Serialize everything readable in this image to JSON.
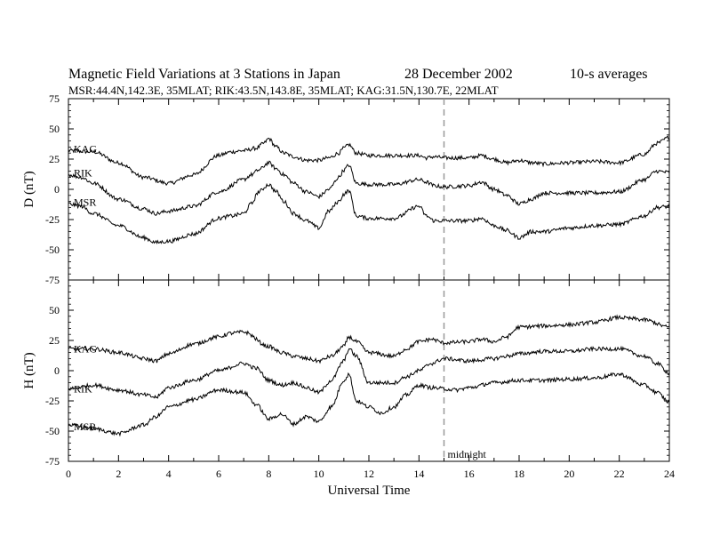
{
  "header": {
    "title": "Magnetic Field Variations at 3 Stations in Japan",
    "date": "28 December 2002",
    "averaging": "10-s averages",
    "stations_line": "MSR:44.4N,142.3E, 35MLAT;  RIK:43.5N,143.8E, 35MLAT;  KAG:31.5N,130.7E, 22MLAT"
  },
  "chart_data": [
    {
      "type": "line",
      "panel": "D",
      "ylabel": "D (nT)",
      "xlabel": "",
      "xlim": [
        0,
        24
      ],
      "ylim": [
        -75,
        75
      ],
      "yticks": [
        75,
        50,
        25,
        0,
        -25,
        -50,
        -75
      ],
      "xticks": [],
      "series": [
        {
          "name": "KAG",
          "x": [
            0,
            1,
            2,
            3,
            4,
            5,
            6,
            6.5,
            7,
            7.5,
            7.8,
            8,
            8.3,
            8.6,
            9,
            9.5,
            10,
            10.4,
            10.8,
            11,
            11.2,
            11.5,
            12,
            13,
            14,
            14.3,
            14.6,
            15,
            16,
            16.5,
            17,
            17.5,
            18,
            18.5,
            19,
            20,
            21,
            22,
            23,
            23.5,
            24
          ],
          "y": [
            32,
            31,
            22,
            10,
            5,
            12,
            28,
            31,
            32,
            34,
            38,
            42,
            35,
            30,
            27,
            24,
            24,
            26,
            30,
            34,
            37,
            30,
            28,
            28,
            28,
            26,
            27,
            26,
            26,
            28,
            25,
            22,
            24,
            22,
            21,
            22,
            23,
            22,
            29,
            38,
            43
          ]
        },
        {
          "name": "RIK",
          "x": [
            0,
            0.5,
            1,
            2,
            3,
            3.5,
            4,
            5,
            6,
            7,
            7.3,
            7.6,
            8,
            8.3,
            8.6,
            9,
            9.5,
            10,
            10.4,
            10.8,
            11,
            11.2,
            11.5,
            12,
            13,
            14,
            14.3,
            14.6,
            15,
            16,
            16.5,
            17,
            17.5,
            18,
            18.5,
            19,
            20,
            21,
            22,
            23,
            23.5,
            24
          ],
          "y": [
            12,
            10,
            5,
            -8,
            -16,
            -20,
            -18,
            -14,
            -2,
            8,
            12,
            16,
            22,
            17,
            12,
            5,
            -2,
            -6,
            0,
            10,
            16,
            20,
            5,
            4,
            4,
            8,
            6,
            3,
            2,
            3,
            6,
            0,
            -5,
            -12,
            -8,
            -3,
            -3,
            -3,
            -2,
            8,
            15,
            14
          ]
        },
        {
          "name": "MSR",
          "x": [
            0,
            0.5,
            1,
            2,
            3,
            3.5,
            4,
            5,
            6,
            6.5,
            7,
            7.3,
            7.6,
            8,
            8.3,
            8.6,
            9,
            9.5,
            10,
            10.4,
            10.8,
            11,
            11.2,
            11.5,
            12,
            13,
            14,
            14.3,
            14.6,
            15,
            16,
            16.5,
            17,
            17.5,
            18,
            18.5,
            19,
            20,
            21,
            22,
            23,
            23.5,
            24
          ],
          "y": [
            -12,
            -14,
            -20,
            -30,
            -40,
            -44,
            -43,
            -37,
            -24,
            -22,
            -20,
            -12,
            -2,
            4,
            -2,
            -10,
            -20,
            -26,
            -32,
            -18,
            -10,
            -4,
            -1,
            -22,
            -24,
            -24,
            -14,
            -22,
            -26,
            -26,
            -26,
            -24,
            -30,
            -34,
            -40,
            -35,
            -35,
            -32,
            -30,
            -29,
            -22,
            -15,
            -14
          ]
        }
      ]
    },
    {
      "type": "line",
      "panel": "H",
      "ylabel": "H (nT)",
      "xlabel": "Universal Time",
      "xlim": [
        0,
        24
      ],
      "ylim": [
        -75,
        75
      ],
      "yticks": [
        50,
        25,
        0,
        -25,
        -50,
        -75
      ],
      "xticks": [
        0,
        2,
        4,
        6,
        8,
        10,
        12,
        14,
        16,
        18,
        20,
        22,
        24
      ],
      "series": [
        {
          "name": "KAG",
          "x": [
            0,
            1,
            2,
            3,
            3.5,
            4,
            5,
            6,
            6.5,
            7,
            8,
            8.5,
            9,
            9.5,
            10,
            10.5,
            11,
            11.2,
            11.5,
            12,
            13,
            13.5,
            14,
            14.5,
            15,
            16,
            16.5,
            17,
            17.5,
            18,
            19,
            20,
            21,
            22,
            22.5,
            23,
            24
          ],
          "y": [
            18,
            18,
            15,
            10,
            8,
            14,
            22,
            28,
            31,
            32,
            20,
            15,
            12,
            10,
            8,
            12,
            20,
            28,
            24,
            15,
            12,
            18,
            24,
            26,
            23,
            24,
            26,
            24,
            28,
            36,
            37,
            38,
            40,
            44,
            43,
            42,
            36
          ]
        },
        {
          "name": "RIK",
          "x": [
            0,
            1,
            2,
            3,
            3.5,
            4,
            5,
            6,
            7,
            7.5,
            8,
            8.5,
            9,
            9.5,
            10,
            10.5,
            11,
            11.2,
            11.5,
            12,
            13,
            13.5,
            14,
            14.5,
            15,
            16,
            17,
            17.5,
            18,
            19,
            20,
            21,
            22,
            23,
            23.5,
            24
          ],
          "y": [
            -15,
            -12,
            -16,
            -20,
            -22,
            -14,
            -8,
            0,
            6,
            2,
            -8,
            -12,
            -10,
            -14,
            -18,
            -8,
            8,
            18,
            12,
            -10,
            -10,
            -5,
            0,
            6,
            10,
            8,
            10,
            12,
            14,
            16,
            16,
            18,
            18,
            12,
            6,
            -2
          ]
        },
        {
          "name": "MSR",
          "x": [
            0,
            1,
            2,
            3,
            3.5,
            4,
            5,
            6,
            7,
            7.5,
            8,
            8.5,
            9,
            9.5,
            10,
            10.5,
            11,
            11.2,
            11.5,
            12,
            12.5,
            13,
            13.5,
            14,
            14.5,
            15,
            15.5,
            16,
            17,
            18,
            19,
            20,
            21,
            22,
            23,
            23.5,
            24
          ],
          "y": [
            -45,
            -48,
            -52,
            -45,
            -38,
            -30,
            -24,
            -16,
            -18,
            -28,
            -40,
            -36,
            -44,
            -38,
            -42,
            -30,
            -8,
            -3,
            -25,
            -30,
            -35,
            -30,
            -20,
            -12,
            -14,
            -15,
            -16,
            -14,
            -10,
            -8,
            -8,
            -7,
            -6,
            -3,
            -12,
            -18,
            -26
          ]
        }
      ]
    }
  ],
  "annotations": {
    "midnight_label": "midnight",
    "midnight_x": 15
  }
}
